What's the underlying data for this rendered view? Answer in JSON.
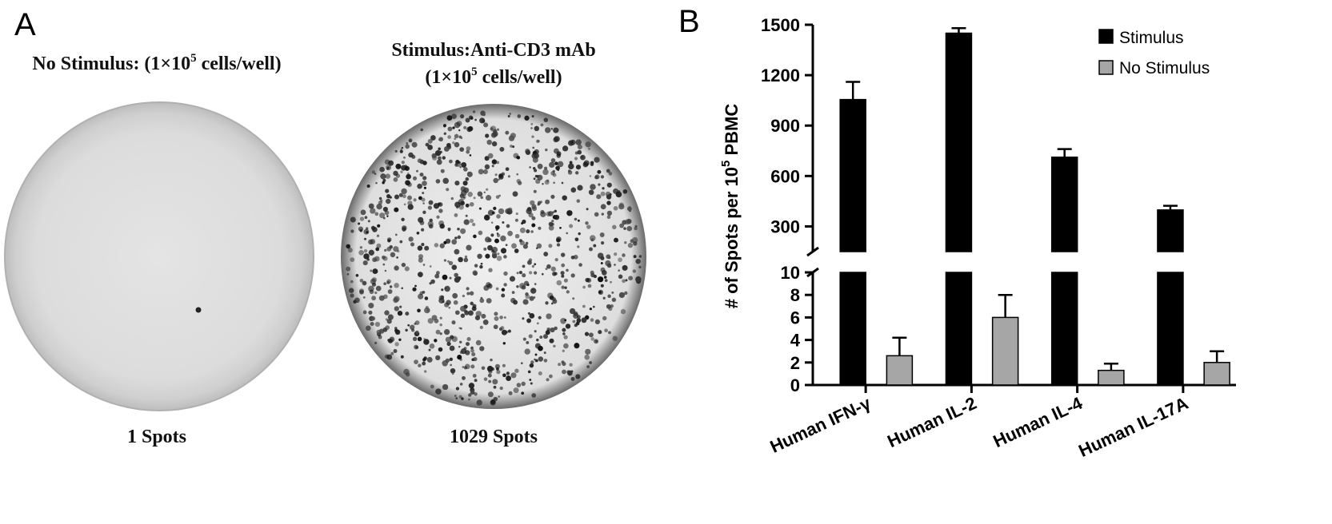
{
  "panel_a": {
    "label": "A",
    "left_title_prefix": "No Stimulus: (1×10",
    "left_title_exp": "5",
    "left_title_suffix": " cells/well)",
    "right_title_line1": "Stimulus:Anti-CD3 mAb",
    "right_title_prefix": "(1×10",
    "right_title_exp": "5",
    "right_title_suffix": " cells/well)",
    "left_caption": "1 Spots",
    "right_caption": "1029 Spots",
    "left_spot_count": 1,
    "right_spot_count": 1029
  },
  "panel_b": {
    "label": "B"
  },
  "chart_data": {
    "type": "bar",
    "title": "",
    "xlabel": "",
    "ylabel_prefix": "# of Spots per 10",
    "ylabel_exp": "5",
    "ylabel_suffix": " PBMC",
    "categories": [
      "Human IFN-γ",
      "Human IL-2",
      "Human IL-4",
      "Human IL-17A"
    ],
    "series": [
      {
        "name": "Stimulus",
        "color": "#000000",
        "values": [
          1055,
          1450,
          712,
          398
        ],
        "errors": [
          105,
          30,
          48,
          25
        ]
      },
      {
        "name": "No Stimulus",
        "color": "#a6a6a6",
        "values": [
          2.6,
          6.0,
          1.3,
          2.0
        ],
        "errors": [
          1.6,
          2.0,
          0.6,
          1.0
        ]
      }
    ],
    "y_axis_broken": true,
    "y_lower_segment": {
      "range": [
        0,
        10
      ],
      "ticks": [
        0,
        2,
        4,
        6,
        8,
        10
      ]
    },
    "y_upper_segment": {
      "range": [
        150,
        1500
      ],
      "ticks": [
        300,
        600,
        900,
        1200,
        1500
      ]
    },
    "legend_position": "top-right",
    "grid": false
  }
}
